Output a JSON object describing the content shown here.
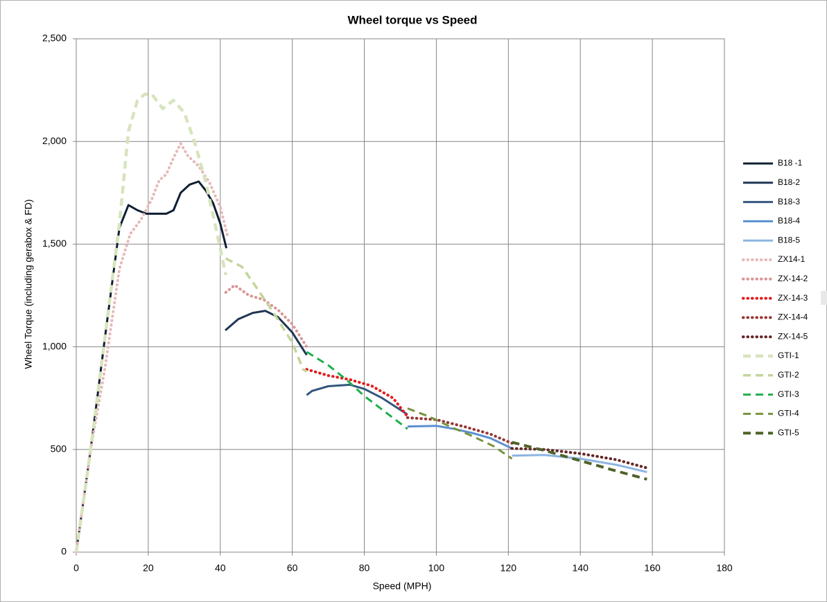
{
  "chart_data": {
    "type": "line",
    "title": "Wheel torque vs Speed",
    "x_label": "Speed (MPH)",
    "y_label": "Wheel Torque (including gerabox & FD)",
    "xlim": [
      0,
      180
    ],
    "xticks": [
      0,
      20,
      40,
      60,
      80,
      100,
      120,
      140,
      160,
      180
    ],
    "ylim": [
      0,
      2500
    ],
    "yticks": [
      0,
      500,
      {
        "value": 1000,
        "label": "1,000"
      },
      {
        "value": 1500,
        "label": "1,500"
      },
      {
        "value": 2000,
        "label": "2,000"
      },
      {
        "value": 2500,
        "label": "2,500"
      }
    ],
    "grid": true,
    "legend": "right",
    "series": [
      {
        "name": "B18 -1",
        "color": "#0f1f33",
        "line_style": "solid",
        "width": 3,
        "x": [
          0,
          4,
          8,
          12,
          14.5,
          17,
          19.5,
          22,
          25,
          27,
          29,
          31.5,
          34,
          36,
          38,
          40,
          41.7
        ],
        "values": [
          0,
          500,
          1050,
          1580,
          1690,
          1665,
          1648,
          1648,
          1648,
          1665,
          1750,
          1790,
          1805,
          1760,
          1700,
          1600,
          1480
        ]
      },
      {
        "name": "B18-2",
        "color": "#1f3552",
        "line_style": "solid",
        "width": 3,
        "x": [
          41.4,
          45,
          49,
          52.5,
          56,
          60,
          64
        ],
        "values": [
          1080,
          1135,
          1165,
          1175,
          1145,
          1070,
          960
        ]
      },
      {
        "name": "B18-3",
        "color": "#34557e",
        "line_style": "solid",
        "width": 3,
        "x": [
          64,
          65.5,
          70,
          76,
          80,
          85,
          92
        ],
        "values": [
          765,
          785,
          808,
          815,
          795,
          750,
          670
        ]
      },
      {
        "name": "B18-4",
        "color": "#5a8fd0",
        "line_style": "solid",
        "width": 3,
        "x": [
          92,
          100,
          105,
          110,
          115,
          121
        ],
        "values": [
          612,
          615,
          600,
          580,
          555,
          505
        ]
      },
      {
        "name": "B18-5",
        "color": "#8db4e2",
        "line_style": "solid",
        "width": 3,
        "x": [
          121,
          130,
          140,
          150,
          158.5
        ],
        "values": [
          470,
          473,
          455,
          425,
          390
        ]
      },
      {
        "name": "ZX14-1",
        "color": "#e6b9b8",
        "line_style": "dotted",
        "width": 4,
        "x": [
          0,
          4,
          8,
          12,
          15,
          18,
          21,
          23,
          25,
          27,
          29,
          31,
          34,
          37,
          40,
          42
        ],
        "values": [
          0,
          500,
          900,
          1380,
          1550,
          1620,
          1720,
          1810,
          1840,
          1920,
          1990,
          1930,
          1880,
          1800,
          1680,
          1540
        ]
      },
      {
        "name": "ZX-14-2",
        "color": "#d99694",
        "line_style": "dotted",
        "width": 4,
        "x": [
          41.5,
          44,
          48,
          52,
          56,
          60,
          64
        ],
        "values": [
          1265,
          1300,
          1250,
          1230,
          1180,
          1110,
          1000
        ]
      },
      {
        "name": "ZX-14-3",
        "color": "#e41a1c",
        "line_style": "dotted",
        "width": 4,
        "x": [
          64,
          70,
          76,
          82,
          88,
          92
        ],
        "values": [
          890,
          860,
          840,
          810,
          750,
          660
        ]
      },
      {
        "name": "ZX-14-4",
        "color": "#953735",
        "line_style": "dotted",
        "width": 4,
        "x": [
          92,
          100,
          108,
          115,
          121
        ],
        "values": [
          655,
          645,
          610,
          575,
          530
        ]
      },
      {
        "name": "ZX-14-5",
        "color": "#632523",
        "line_style": "dotted",
        "width": 4,
        "x": [
          121,
          130,
          140,
          150,
          158.5
        ],
        "values": [
          505,
          500,
          480,
          450,
          410
        ]
      },
      {
        "name": "GTI-1",
        "color": "#d7e4bd",
        "line_style": "dashed",
        "width": 4.5,
        "x": [
          0,
          4,
          8,
          12,
          14.5,
          17,
          19,
          21,
          24,
          27,
          30,
          33,
          36,
          39,
          41.5
        ],
        "values": [
          0,
          500,
          1050,
          1600,
          2050,
          2200,
          2230,
          2230,
          2160,
          2200,
          2140,
          1990,
          1800,
          1560,
          1350
        ]
      },
      {
        "name": "GTI-2",
        "color": "#c3d69b",
        "line_style": "dashed",
        "width": 3.5,
        "x": [
          41.5,
          46,
          50,
          55,
          60,
          63,
          64
        ],
        "values": [
          1430,
          1390,
          1290,
          1160,
          1020,
          890,
          880
        ]
      },
      {
        "name": "GTI-3",
        "color": "#1fae4a",
        "line_style": "dashed",
        "width": 3,
        "x": [
          64,
          70,
          75,
          80,
          86,
          92
        ],
        "values": [
          975,
          910,
          840,
          760,
          680,
          600
        ]
      },
      {
        "name": "GTI-4",
        "color": "#77933c",
        "line_style": "dashed",
        "width": 3,
        "x": [
          92,
          98,
          104,
          110,
          116,
          121
        ],
        "values": [
          700,
          660,
          610,
          565,
          515,
          455
        ]
      },
      {
        "name": "GTI-5",
        "color": "#4f6228",
        "line_style": "dashed",
        "width": 4,
        "x": [
          121,
          130,
          140,
          150,
          158.5
        ],
        "values": [
          535,
          495,
          445,
          395,
          355
        ]
      }
    ]
  }
}
